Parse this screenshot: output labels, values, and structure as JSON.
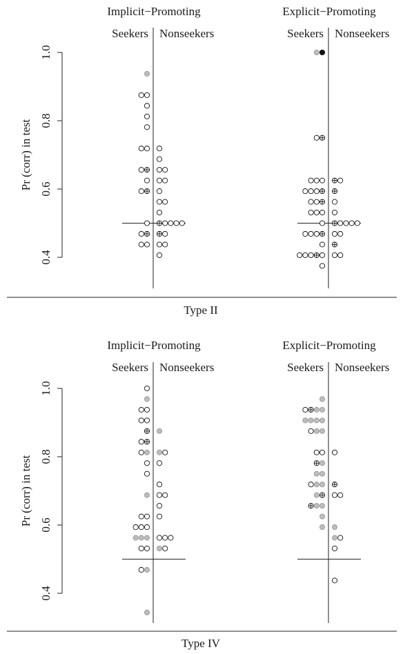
{
  "chart_data": [
    {
      "type": "scatter",
      "panel_label": "Type II",
      "ylabel": "Pr (corr) in test",
      "ylim": [
        0.4,
        1.0
      ],
      "yticks": [
        0.4,
        0.6,
        0.8,
        1.0
      ],
      "yticklabels": [
        "0.4",
        "0.6",
        "0.8",
        "1.0"
      ],
      "chance_line": 0.5,
      "point_styles": {
        "open": "#ffffff",
        "gray": "#bdbdbd",
        "filled": "#111111",
        "crossed": "crossed"
      },
      "groups": [
        {
          "condition": "Implicit−Promoting",
          "left_label": "Seekers",
          "right_label": "Nonseekers",
          "seekers": [
            {
              "y": 0.9375,
              "n": 1,
              "style": "gray"
            },
            {
              "y": 0.875,
              "n": 2,
              "style": "open"
            },
            {
              "y": 0.84375,
              "n": 1,
              "style": "open"
            },
            {
              "y": 0.8125,
              "n": 1,
              "style": "open"
            },
            {
              "y": 0.78125,
              "n": 1,
              "style": "open"
            },
            {
              "y": 0.71875,
              "n": 2,
              "style": "open"
            },
            {
              "y": 0.65625,
              "n": 2,
              "style": "open",
              "cross_index": 1
            },
            {
              "y": 0.625,
              "n": 1,
              "style": "open"
            },
            {
              "y": 0.59375,
              "n": 2,
              "style": "open",
              "cross_index": 1
            },
            {
              "y": 0.5,
              "n": 1,
              "style": "open"
            },
            {
              "y": 0.46875,
              "n": 2,
              "style": "open",
              "cross_index": 1
            },
            {
              "y": 0.4375,
              "n": 2,
              "style": "open"
            }
          ],
          "nonseekers": [
            {
              "y": 0.71875,
              "n": 1,
              "style": "open"
            },
            {
              "y": 0.6875,
              "n": 1,
              "style": "open"
            },
            {
              "y": 0.65625,
              "n": 2,
              "style": "open"
            },
            {
              "y": 0.625,
              "n": 2,
              "style": "open"
            },
            {
              "y": 0.59375,
              "n": 1,
              "style": "open"
            },
            {
              "y": 0.5625,
              "n": 2,
              "style": "open"
            },
            {
              "y": 0.53125,
              "n": 1,
              "style": "open"
            },
            {
              "y": 0.5,
              "n": 5,
              "style": "open",
              "cross_index": 0
            },
            {
              "y": 0.46875,
              "n": 2,
              "style": "open",
              "cross_index": 0
            },
            {
              "y": 0.4375,
              "n": 2,
              "style": "open"
            },
            {
              "y": 0.40625,
              "n": 1,
              "style": "open"
            }
          ]
        },
        {
          "condition": "Explicit−Promoting",
          "left_label": "Seekers",
          "right_label": "Nonseekers",
          "seekers": [
            {
              "y": 1.0,
              "n": 2,
              "styles": [
                "gray",
                "filled"
              ]
            },
            {
              "y": 0.75,
              "n": 2,
              "style": "open",
              "cross_index": 1
            },
            {
              "y": 0.625,
              "n": 3,
              "style": "open"
            },
            {
              "y": 0.59375,
              "n": 4,
              "style": "open",
              "cross_index": 3
            },
            {
              "y": 0.5625,
              "n": 3,
              "style": "open",
              "cross_index": 2
            },
            {
              "y": 0.53125,
              "n": 3,
              "style": "open"
            },
            {
              "y": 0.5,
              "n": 1,
              "style": "open"
            },
            {
              "y": 0.46875,
              "n": 4,
              "style": "open",
              "cross_index": 3
            },
            {
              "y": 0.4375,
              "n": 1,
              "style": "open"
            },
            {
              "y": 0.40625,
              "n": 5,
              "style": "open",
              "cross_index": 3
            },
            {
              "y": 0.375,
              "n": 1,
              "style": "open"
            }
          ],
          "nonseekers": [
            {
              "y": 0.625,
              "n": 2,
              "style": "open",
              "cross_index": 0
            },
            {
              "y": 0.59375,
              "n": 1,
              "style": "open",
              "cross_index": 0
            },
            {
              "y": 0.5625,
              "n": 1,
              "style": "open"
            },
            {
              "y": 0.53125,
              "n": 1,
              "style": "open"
            },
            {
              "y": 0.5,
              "n": 5,
              "style": "open",
              "cross_index": 0
            },
            {
              "y": 0.46875,
              "n": 2,
              "style": "open"
            },
            {
              "y": 0.4375,
              "n": 1,
              "style": "open",
              "cross_index": 0
            },
            {
              "y": 0.40625,
              "n": 2,
              "style": "open"
            }
          ]
        }
      ]
    },
    {
      "type": "scatter",
      "panel_label": "Type IV",
      "ylabel": "Pr (corr) in test",
      "ylim": [
        0.4,
        1.0
      ],
      "yticks": [
        0.4,
        0.6,
        0.8,
        1.0
      ],
      "yticklabels": [
        "0.4",
        "0.6",
        "0.8",
        "1.0"
      ],
      "chance_line": 0.5,
      "groups": [
        {
          "condition": "Implicit−Promoting",
          "left_label": "Seekers",
          "right_label": "Nonseekers",
          "seekers": [
            {
              "y": 1.0,
              "n": 1,
              "style": "open"
            },
            {
              "y": 0.96875,
              "n": 1,
              "style": "gray"
            },
            {
              "y": 0.9375,
              "n": 2,
              "style": "open"
            },
            {
              "y": 0.90625,
              "n": 2,
              "style": "open"
            },
            {
              "y": 0.875,
              "n": 1,
              "style": "open",
              "cross_index": 0
            },
            {
              "y": 0.84375,
              "n": 2,
              "style": "open",
              "cross_index": 1
            },
            {
              "y": 0.8125,
              "n": 2,
              "styles": [
                "open",
                "gray"
              ]
            },
            {
              "y": 0.78125,
              "n": 1,
              "style": "open"
            },
            {
              "y": 0.75,
              "n": 1,
              "style": "open"
            },
            {
              "y": 0.6875,
              "n": 1,
              "style": "gray"
            },
            {
              "y": 0.625,
              "n": 2,
              "style": "open"
            },
            {
              "y": 0.59375,
              "n": 3,
              "style": "open"
            },
            {
              "y": 0.5625,
              "n": 3,
              "styles": [
                "gray",
                "gray",
                "gray"
              ]
            },
            {
              "y": 0.53125,
              "n": 2,
              "style": "open"
            },
            {
              "y": 0.46875,
              "n": 2,
              "styles": [
                "open",
                "gray"
              ]
            },
            {
              "y": 0.34375,
              "n": 1,
              "style": "gray"
            }
          ],
          "nonseekers": [
            {
              "y": 0.875,
              "n": 1,
              "style": "gray"
            },
            {
              "y": 0.8125,
              "n": 2,
              "styles": [
                "gray",
                "open"
              ]
            },
            {
              "y": 0.78125,
              "n": 1,
              "style": "open"
            },
            {
              "y": 0.71875,
              "n": 1,
              "style": "open"
            },
            {
              "y": 0.6875,
              "n": 2,
              "style": "open"
            },
            {
              "y": 0.65625,
              "n": 1,
              "style": "open"
            },
            {
              "y": 0.625,
              "n": 1,
              "style": "open"
            },
            {
              "y": 0.5625,
              "n": 3,
              "style": "open"
            },
            {
              "y": 0.53125,
              "n": 2,
              "styles": [
                "gray",
                "open"
              ]
            }
          ]
        },
        {
          "condition": "Explicit−Promoting",
          "left_label": "Seekers",
          "right_label": "Nonseekers",
          "seekers": [
            {
              "y": 0.96875,
              "n": 1,
              "style": "gray"
            },
            {
              "y": 0.9375,
              "n": 4,
              "styles": [
                "open",
                "open",
                "gray",
                "gray"
              ],
              "cross_index": 1
            },
            {
              "y": 0.90625,
              "n": 4,
              "styles": [
                "gray",
                "gray",
                "gray",
                "gray"
              ]
            },
            {
              "y": 0.875,
              "n": 3,
              "styles": [
                "open",
                "gray",
                "gray"
              ]
            },
            {
              "y": 0.8125,
              "n": 2,
              "style": "open"
            },
            {
              "y": 0.78125,
              "n": 2,
              "styles": [
                "open",
                "gray"
              ],
              "cross_index": 0
            },
            {
              "y": 0.75,
              "n": 2,
              "styles": [
                "gray",
                "gray"
              ]
            },
            {
              "y": 0.71875,
              "n": 3,
              "styles": [
                "open",
                "gray",
                "gray"
              ]
            },
            {
              "y": 0.6875,
              "n": 2,
              "styles": [
                "gray",
                "open"
              ],
              "cross_index": 1
            },
            {
              "y": 0.65625,
              "n": 3,
              "styles": [
                "open",
                "gray",
                "gray"
              ],
              "cross_index": 0
            },
            {
              "y": 0.625,
              "n": 1,
              "style": "gray"
            },
            {
              "y": 0.59375,
              "n": 1,
              "style": "gray"
            }
          ],
          "nonseekers": [
            {
              "y": 0.8125,
              "n": 1,
              "style": "open"
            },
            {
              "y": 0.71875,
              "n": 1,
              "style": "open",
              "cross_index": 0
            },
            {
              "y": 0.6875,
              "n": 2,
              "style": "open"
            },
            {
              "y": 0.59375,
              "n": 1,
              "style": "gray"
            },
            {
              "y": 0.5625,
              "n": 2,
              "styles": [
                "gray",
                "open"
              ]
            },
            {
              "y": 0.53125,
              "n": 1,
              "style": "open"
            },
            {
              "y": 0.4375,
              "n": 1,
              "style": "open"
            }
          ]
        }
      ]
    }
  ]
}
